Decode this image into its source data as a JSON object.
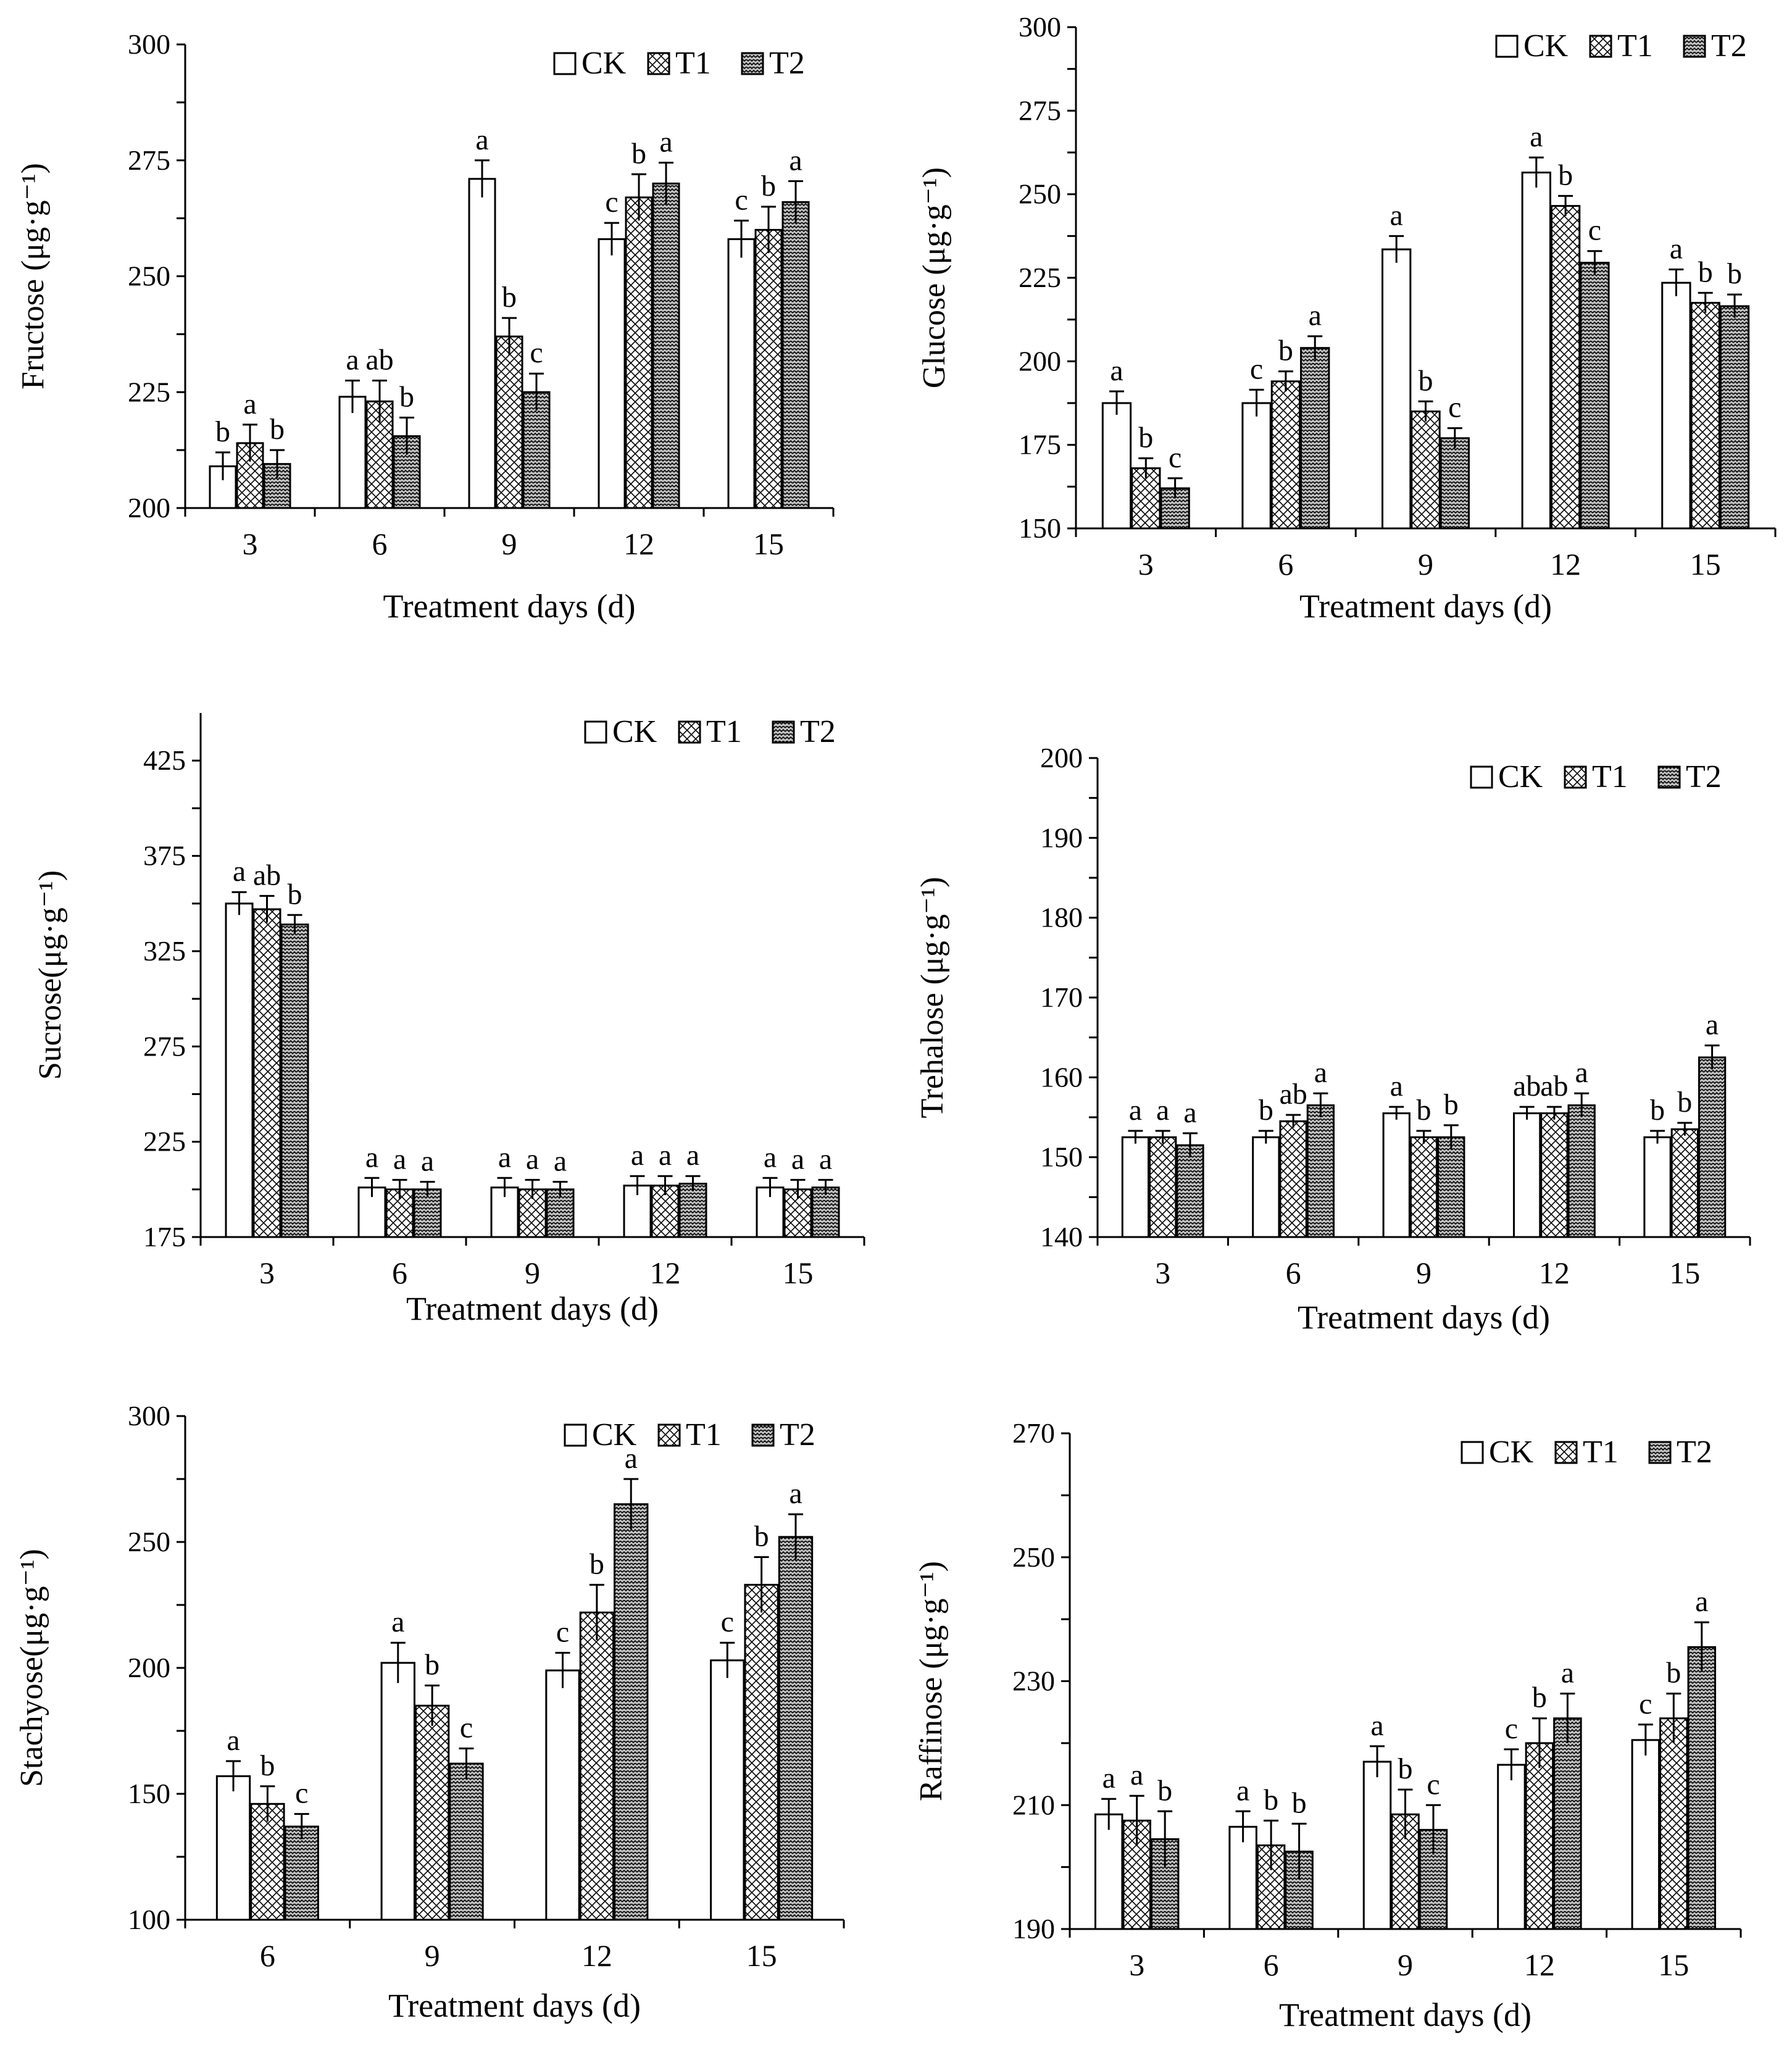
{
  "figure": {
    "series_names": [
      "CK",
      "T1",
      "T2"
    ],
    "xlabel": "Treatment days (d)"
  },
  "chart_data": [
    {
      "type": "bar",
      "ylabel": "Fructose (μg·g⁻¹)",
      "xlabel": "Treatment days (d)",
      "categories": [
        "3",
        "6",
        "9",
        "12",
        "15"
      ],
      "ylim": [
        200,
        300
      ],
      "yticks": [
        200,
        225,
        250,
        275,
        300
      ],
      "legend": "top-right",
      "series": [
        {
          "name": "CK",
          "values": [
            209,
            224,
            271,
            258,
            258
          ],
          "errors": [
            3,
            3.5,
            4,
            3.5,
            4
          ],
          "letters": [
            "b",
            "a",
            "a",
            "c",
            "c"
          ]
        },
        {
          "name": "T1",
          "values": [
            214,
            223,
            237,
            267,
            260
          ],
          "errors": [
            4,
            4.5,
            4,
            5,
            5
          ],
          "letters": [
            "a",
            "ab",
            "b",
            "b",
            "b"
          ]
        },
        {
          "name": "T2",
          "values": [
            209.5,
            215.5,
            225,
            270,
            266
          ],
          "errors": [
            3,
            4,
            4,
            4.5,
            4.5
          ],
          "letters": [
            "b",
            "b",
            "c",
            "a",
            "a"
          ]
        }
      ]
    },
    {
      "type": "bar",
      "ylabel": "Glucose (μg·g⁻¹)",
      "xlabel": "Treatment days (d)",
      "categories": [
        "3",
        "6",
        "9",
        "12",
        "15"
      ],
      "ylim": [
        150,
        300
      ],
      "yticks": [
        150,
        175,
        200,
        225,
        250,
        275,
        300
      ],
      "legend": "top-right",
      "series": [
        {
          "name": "CK",
          "values": [
            187.5,
            187.5,
            233.5,
            256.5,
            223.5
          ],
          "errors": [
            3.5,
            4,
            4,
            4.5,
            4
          ],
          "letters": [
            "a",
            "c",
            "a",
            "a",
            "a"
          ]
        },
        {
          "name": "T1",
          "values": [
            168,
            194,
            185,
            246.5,
            217.5
          ],
          "errors": [
            3,
            3,
            3,
            3,
            3
          ],
          "letters": [
            "b",
            "b",
            "b",
            "b",
            "b"
          ]
        },
        {
          "name": "T2",
          "values": [
            162,
            204,
            177,
            229.5,
            216.5
          ],
          "errors": [
            3,
            3.5,
            3,
            3.5,
            3.5
          ],
          "letters": [
            "c",
            "a",
            "c",
            "c",
            "b"
          ]
        }
      ]
    },
    {
      "type": "bar",
      "ylabel": "Sucrose(μg·g⁻¹)",
      "xlabel": "Treatment days (d)",
      "categories": [
        "3",
        "6",
        "9",
        "12",
        "15"
      ],
      "ylim": [
        175,
        450
      ],
      "yticks": [
        175,
        225,
        275,
        325,
        375,
        425
      ],
      "legend": "top-right",
      "series": [
        {
          "name": "CK",
          "values": [
            350,
            201,
            201,
            202,
            201
          ],
          "errors": [
            6,
            5,
            5,
            5,
            5
          ],
          "letters": [
            "a",
            "a",
            "a",
            "a",
            "a"
          ]
        },
        {
          "name": "T1",
          "values": [
            347,
            200,
            200,
            202,
            200
          ],
          "errors": [
            7,
            5,
            5,
            5,
            5
          ],
          "letters": [
            "ab",
            "a",
            "a",
            "a",
            "a"
          ]
        },
        {
          "name": "T2",
          "values": [
            339,
            200,
            200,
            203,
            201
          ],
          "errors": [
            5,
            4,
            4,
            4,
            4
          ],
          "letters": [
            "b",
            "a",
            "a",
            "a",
            "a"
          ]
        }
      ]
    },
    {
      "type": "bar",
      "ylabel": "Trehalose (μg·g⁻¹)",
      "xlabel": "Treatment days (d)",
      "categories": [
        "3",
        "6",
        "9",
        "12",
        "15"
      ],
      "ylim": [
        140,
        200
      ],
      "yticks": [
        140,
        150,
        160,
        170,
        180,
        190,
        200
      ],
      "legend": "top-right",
      "series": [
        {
          "name": "CK",
          "values": [
            152.5,
            152.5,
            155.5,
            155.5,
            152.5
          ],
          "errors": [
            0.8,
            0.8,
            0.8,
            0.8,
            0.8
          ],
          "letters": [
            "a",
            "b",
            "a",
            "ab",
            "b"
          ]
        },
        {
          "name": "T1",
          "values": [
            152.5,
            154.5,
            152.5,
            155.5,
            153.5
          ],
          "errors": [
            0.8,
            0.8,
            0.8,
            0.8,
            0.8
          ],
          "letters": [
            "a",
            "ab",
            "b",
            "ab",
            "b"
          ]
        },
        {
          "name": "T2",
          "values": [
            151.5,
            156.5,
            152.5,
            156.5,
            162.5
          ],
          "errors": [
            1.5,
            1.5,
            1.5,
            1.5,
            1.5
          ],
          "letters": [
            "a",
            "a",
            "b",
            "a",
            "a"
          ]
        }
      ]
    },
    {
      "type": "bar",
      "ylabel": "Stachyose(μg·g⁻¹)",
      "xlabel": "Treatment days (d)",
      "categories": [
        "6",
        "9",
        "12",
        "15"
      ],
      "ylim": [
        100,
        300
      ],
      "yticks": [
        100,
        150,
        200,
        250,
        300
      ],
      "legend": "top-right",
      "series": [
        {
          "name": "CK",
          "values": [
            157,
            202,
            199,
            203
          ],
          "errors": [
            6,
            8,
            7,
            7
          ],
          "letters": [
            "a",
            "a",
            "c",
            "c"
          ]
        },
        {
          "name": "T1",
          "values": [
            146,
            185,
            222,
            233
          ],
          "errors": [
            7,
            8,
            11,
            11
          ],
          "letters": [
            "b",
            "b",
            "b",
            "b"
          ]
        },
        {
          "name": "T2",
          "values": [
            137,
            162,
            265,
            252
          ],
          "errors": [
            5,
            6,
            10,
            9
          ],
          "letters": [
            "c",
            "c",
            "a",
            "a"
          ]
        }
      ]
    },
    {
      "type": "bar",
      "ylabel": "Raffinose (μg·g⁻¹)",
      "xlabel": "Treatment days (d)",
      "categories": [
        "3",
        "6",
        "9",
        "12",
        "15"
      ],
      "ylim": [
        190,
        270
      ],
      "yticks": [
        190,
        210,
        230,
        250,
        270
      ],
      "legend": "top-right",
      "series": [
        {
          "name": "CK",
          "values": [
            208.5,
            206.5,
            217,
            216.5,
            220.5
          ],
          "errors": [
            2.5,
            2.5,
            2.5,
            2.5,
            2.5
          ],
          "letters": [
            "a",
            "a",
            "a",
            "c",
            "c"
          ]
        },
        {
          "name": "T1",
          "values": [
            207.5,
            203.5,
            208.5,
            220,
            224
          ],
          "errors": [
            4,
            4,
            4,
            4,
            4
          ],
          "letters": [
            "a",
            "b",
            "b",
            "b",
            "b"
          ]
        },
        {
          "name": "T2",
          "values": [
            204.5,
            202.5,
            206,
            224,
            235.5
          ],
          "errors": [
            4.5,
            4.5,
            4,
            4,
            4
          ],
          "letters": [
            "b",
            "b",
            "c",
            "a",
            "a"
          ]
        }
      ]
    }
  ]
}
